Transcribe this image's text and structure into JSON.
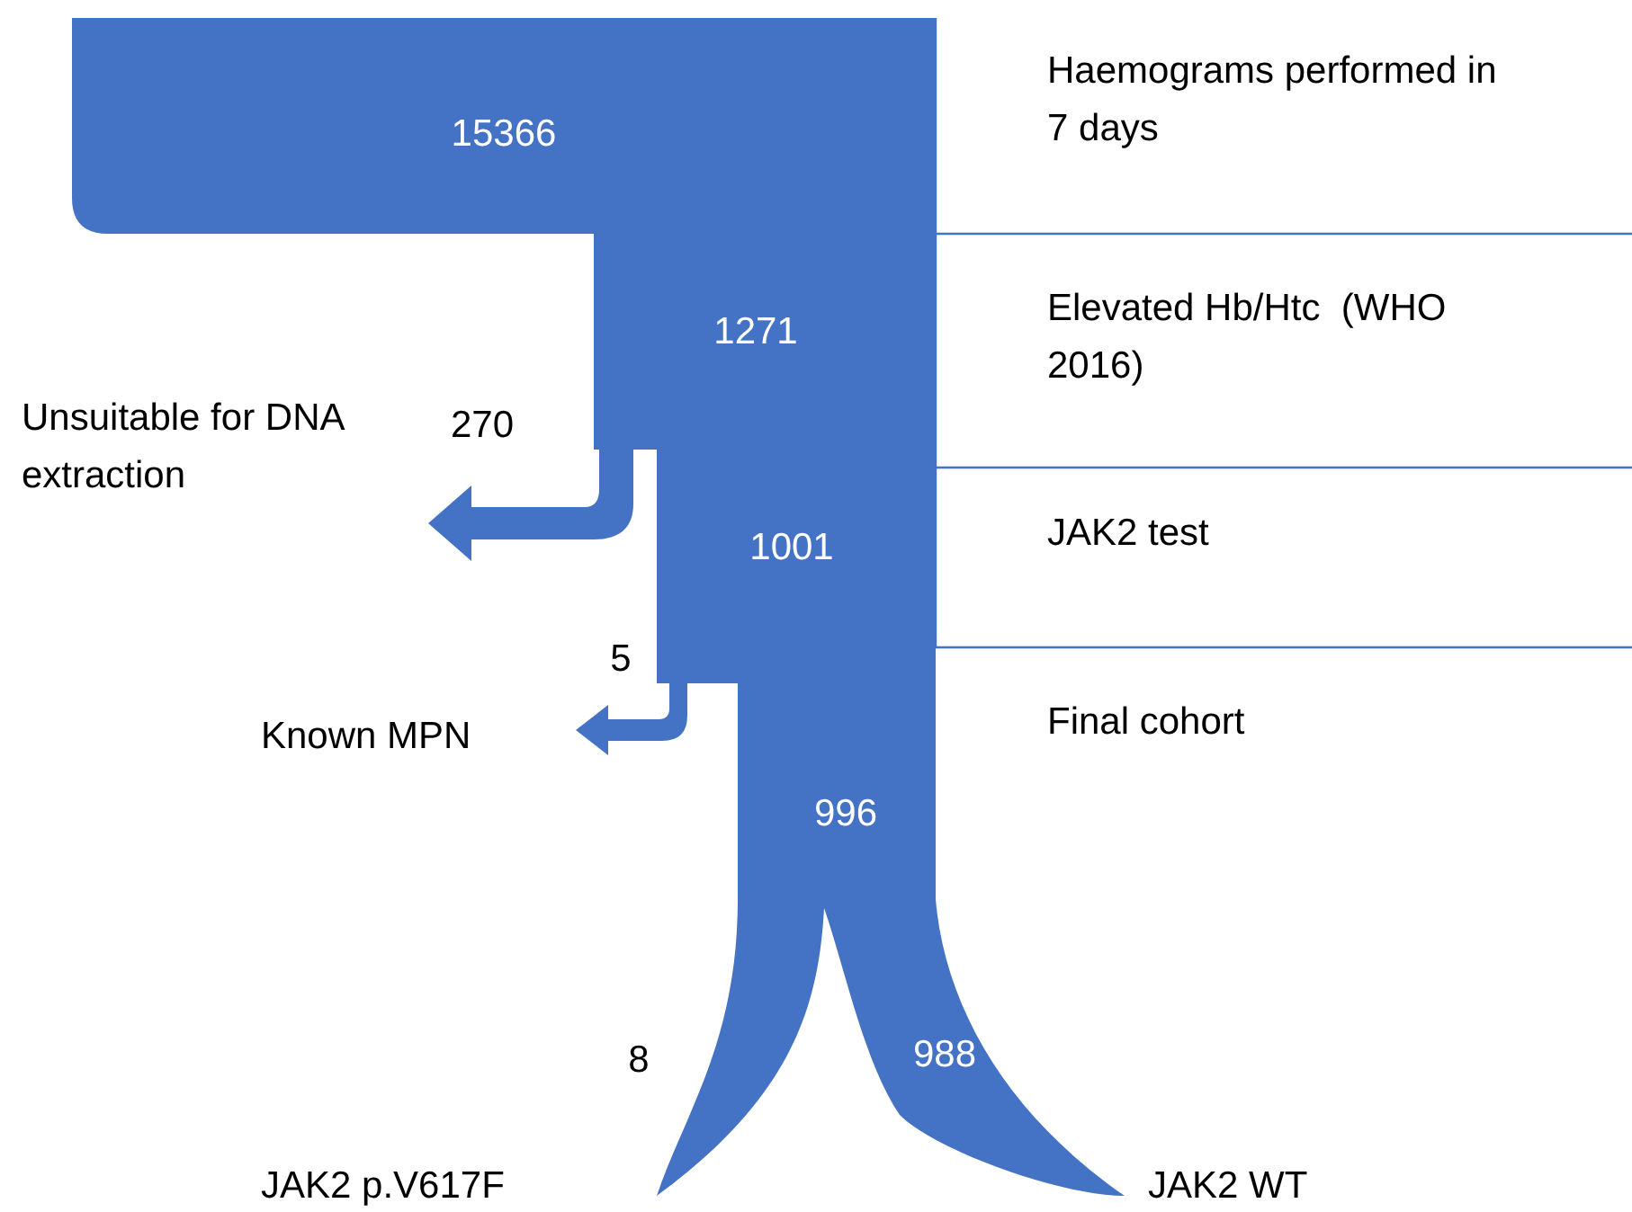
{
  "chart_data": {
    "type": "other",
    "color": "#4472c4",
    "categories": [
      "Haemograms performed in 7 days",
      "Elevated Hb/Htc  (WHO 2016)",
      "JAK2 test",
      "Final cohort",
      "Unsuitable for DNA extraction",
      "Known MPN",
      "JAK2 p.V617F",
      "JAK2 WT"
    ],
    "values": [
      15366,
      1271,
      1001,
      996,
      270,
      5,
      8,
      988
    ],
    "data_labels": true
  }
}
